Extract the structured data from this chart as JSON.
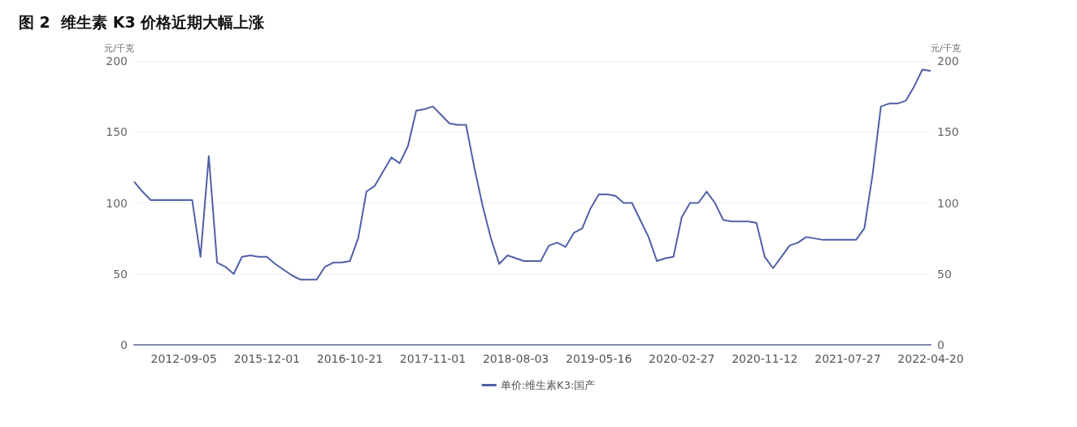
{
  "chart_data": {
    "type": "line",
    "title": "图 2  维生素 K3 价格近期大幅上涨",
    "ylabel": "元/千克",
    "y2label": "元/千克",
    "categories": [
      null,
      null,
      null,
      null,
      null,
      null,
      "2012-09-05",
      null,
      null,
      null,
      null,
      null,
      null,
      null,
      null,
      null,
      "2015-12-01",
      null,
      null,
      null,
      null,
      null,
      null,
      null,
      null,
      null,
      "2016-10-21",
      null,
      null,
      null,
      null,
      null,
      null,
      null,
      null,
      null,
      "2017-11-01",
      null,
      null,
      null,
      null,
      null,
      null,
      null,
      null,
      null,
      "2018-08-03",
      null,
      null,
      null,
      null,
      null,
      null,
      null,
      null,
      null,
      "2019-05-16",
      null,
      null,
      null,
      null,
      null,
      null,
      null,
      null,
      null,
      "2020-02-27",
      null,
      null,
      null,
      null,
      null,
      null,
      null,
      null,
      null,
      "2020-11-12",
      null,
      null,
      null,
      null,
      null,
      null,
      null,
      null,
      null,
      "2021-07-27",
      null,
      null,
      null,
      null,
      null,
      null,
      null,
      null,
      null,
      "2022-04-20"
    ],
    "series": [
      {
        "name": "单价:维生素K3:国产",
        "color": "#5060a8",
        "values": [
          115,
          108,
          102,
          102,
          102,
          102,
          102,
          102,
          62,
          133,
          58,
          55,
          50,
          62,
          63,
          62,
          62,
          57,
          53,
          49,
          46,
          46,
          46,
          55,
          58,
          58,
          59,
          75,
          108,
          112,
          122,
          132,
          128,
          140,
          165,
          166,
          168,
          162,
          156,
          155,
          155,
          125,
          98,
          75,
          57,
          63,
          61,
          59,
          59,
          59,
          70,
          72,
          69,
          79,
          82,
          96,
          106,
          106,
          105,
          100,
          100,
          88,
          76,
          59,
          61,
          62,
          90,
          100,
          100,
          108,
          100,
          88,
          87,
          87,
          87,
          86,
          62,
          54,
          62,
          70,
          72,
          76,
          75,
          74,
          74,
          74,
          74,
          74,
          82,
          120,
          168,
          170,
          170,
          172,
          182,
          194,
          193
        ]
      }
    ],
    "ylim": [
      0,
      200
    ],
    "yticks": [
      0,
      50,
      100,
      150,
      200
    ],
    "y2lim": [
      0,
      200
    ],
    "y2ticks": [
      0,
      50,
      100,
      150,
      200
    ],
    "grid": "y",
    "legend": "bottom",
    "marker": "none",
    "line_style": "solid"
  }
}
